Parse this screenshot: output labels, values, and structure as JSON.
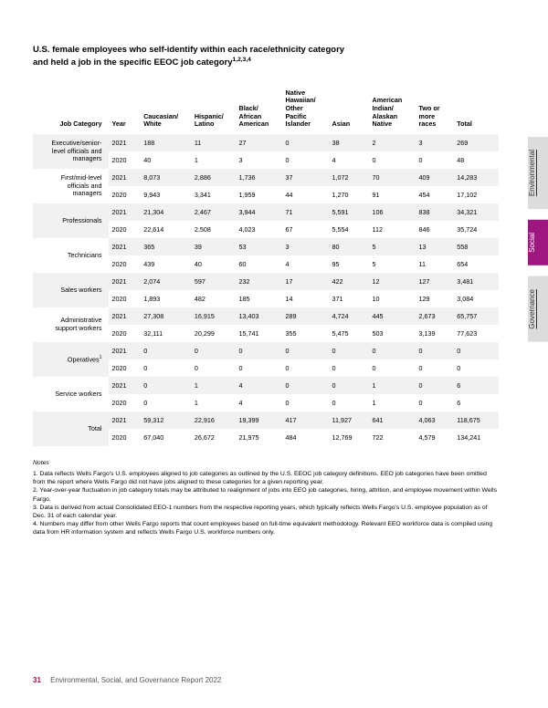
{
  "title_l1": "U.S. female employees who self-identify within each race/ethnicity category",
  "title_l2": "and held a job in the specific EEOC job category",
  "title_sup": "1,2,3,4",
  "columns": {
    "jobcat": "Job Category",
    "year": "Year",
    "c1": "Caucasian/\nWhite",
    "c2": "Hispanic/\nLatino",
    "c3": "Black/\nAfrican\nAmerican",
    "c4": "Native\nHawaiian/\nOther\nPacific\nIslander",
    "c5": "Asian",
    "c6": "American\nIndian/\nAlaskan\nNative",
    "c7": "Two or\nmore\nraces",
    "c8": "Total"
  },
  "categories": [
    {
      "name": "Executive/senior-\nlevel officials and\nmanagers",
      "sup": "",
      "rows": [
        {
          "year": "2021",
          "v": [
            "188",
            "11",
            "27",
            "0",
            "38",
            "2",
            "3",
            "269"
          ]
        },
        {
          "year": "2020",
          "v": [
            "40",
            "1",
            "3",
            "0",
            "4",
            "0",
            "0",
            "48"
          ]
        }
      ]
    },
    {
      "name": "First/mid-level\nofficials and\nmanagers",
      "sup": "",
      "rows": [
        {
          "year": "2021",
          "v": [
            "8,073",
            "2,886",
            "1,736",
            "37",
            "1,072",
            "70",
            "409",
            "14,283"
          ]
        },
        {
          "year": "2020",
          "v": [
            "9,943",
            "3,341",
            "1,959",
            "44",
            "1,270",
            "91",
            "454",
            "17,102"
          ]
        }
      ]
    },
    {
      "name": "Professionals",
      "sup": "",
      "rows": [
        {
          "year": "2021",
          "v": [
            "21,304",
            "2,467",
            "3,944",
            "71",
            "5,591",
            "106",
            "838",
            "34,321"
          ]
        },
        {
          "year": "2020",
          "v": [
            "22,614",
            "2,508",
            "4,023",
            "67",
            "5,554",
            "112",
            "846",
            "35,724"
          ]
        }
      ]
    },
    {
      "name": "Technicians",
      "sup": "",
      "rows": [
        {
          "year": "2021",
          "v": [
            "365",
            "39",
            "53",
            "3",
            "80",
            "5",
            "13",
            "558"
          ]
        },
        {
          "year": "2020",
          "v": [
            "439",
            "40",
            "60",
            "4",
            "95",
            "5",
            "11",
            "654"
          ]
        }
      ]
    },
    {
      "name": "Sales workers",
      "sup": "",
      "rows": [
        {
          "year": "2021",
          "v": [
            "2,074",
            "597",
            "232",
            "17",
            "422",
            "12",
            "127",
            "3,481"
          ]
        },
        {
          "year": "2020",
          "v": [
            "1,893",
            "482",
            "185",
            "14",
            "371",
            "10",
            "129",
            "3,084"
          ]
        }
      ]
    },
    {
      "name": "Administrative\nsupport workers",
      "sup": "",
      "rows": [
        {
          "year": "2021",
          "v": [
            "27,308",
            "16,915",
            "13,403",
            "289",
            "4,724",
            "445",
            "2,673",
            "65,757"
          ]
        },
        {
          "year": "2020",
          "v": [
            "32,111",
            "20,299",
            "15,741",
            "355",
            "5,475",
            "503",
            "3,139",
            "77,623"
          ]
        }
      ]
    },
    {
      "name": "Operatives",
      "sup": "1",
      "rows": [
        {
          "year": "2021",
          "v": [
            "0",
            "0",
            "0",
            "0",
            "0",
            "0",
            "0",
            "0"
          ]
        },
        {
          "year": "2020",
          "v": [
            "0",
            "0",
            "0",
            "0",
            "0",
            "0",
            "0",
            "0"
          ]
        }
      ]
    },
    {
      "name": "Service workers",
      "sup": "",
      "rows": [
        {
          "year": "2021",
          "v": [
            "0",
            "1",
            "4",
            "0",
            "0",
            "1",
            "0",
            "6"
          ]
        },
        {
          "year": "2020",
          "v": [
            "0",
            "1",
            "4",
            "0",
            "0",
            "1",
            "0",
            "6"
          ]
        }
      ]
    },
    {
      "name": "Total",
      "sup": "",
      "rows": [
        {
          "year": "2021",
          "v": [
            "59,312",
            "22,916",
            "19,399",
            "417",
            "11,927",
            "641",
            "4,063",
            "118,675"
          ]
        },
        {
          "year": "2020",
          "v": [
            "67,040",
            "26,672",
            "21,975",
            "484",
            "12,769",
            "722",
            "4,579",
            "134,241"
          ]
        }
      ]
    }
  ],
  "notes": {
    "head": "Notes",
    "items": [
      "1. Data reflects Wells Fargo's U.S. employees aligned to job categories as outlined by the U.S. EEOC job category definitions. EEO job categories have been omitted from the report where Wells Fargo did not have jobs aligned to these categories for a given reporting year.",
      "2. Year-over-year fluctuation in job category totals may be attributed to realignment of jobs into EEO job categories, hiring, attrition, and employee movement within Wells Fargo.",
      "3. Data is derived from actual Consolidated EEO-1 numbers from the respective reporting years, which typically reflects Wells Fargo's U.S. employee population as of Dec. 31 of each calendar year.",
      "4. Numbers may differ from other Wells Fargo reports that count employees based on full-time equivalent methodology. Relevant EEO workforce data is compiled using data from HR information system and reflects Wells Fargo U.S. workforce numbers only."
    ]
  },
  "footer": {
    "page": "31",
    "text": "Environmental, Social, and Governance Report 2022"
  },
  "tabs": {
    "env": "Environmental",
    "soc": "Social",
    "gov": "Governance"
  },
  "colors": {
    "row_shade": "#f1f1f1",
    "accent": "#c4003a",
    "tab_active": "#9e1781",
    "tab_inactive": "#dcdcdc"
  }
}
